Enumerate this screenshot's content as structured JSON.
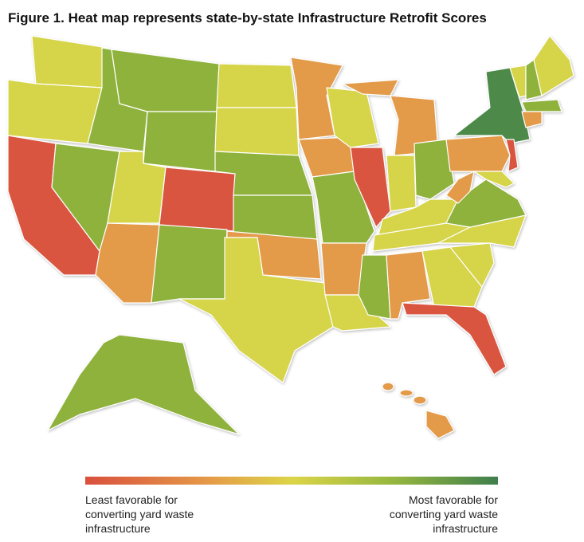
{
  "title": "Figure 1. Heat map represents state-by-state Infrastructure Retrofit Scores",
  "legend": {
    "low": [
      "Least favorable for",
      "converting yard waste",
      "infrastructure"
    ],
    "high": [
      "Most favorable for",
      "converting yard waste",
      "infrastructure"
    ]
  }
}
